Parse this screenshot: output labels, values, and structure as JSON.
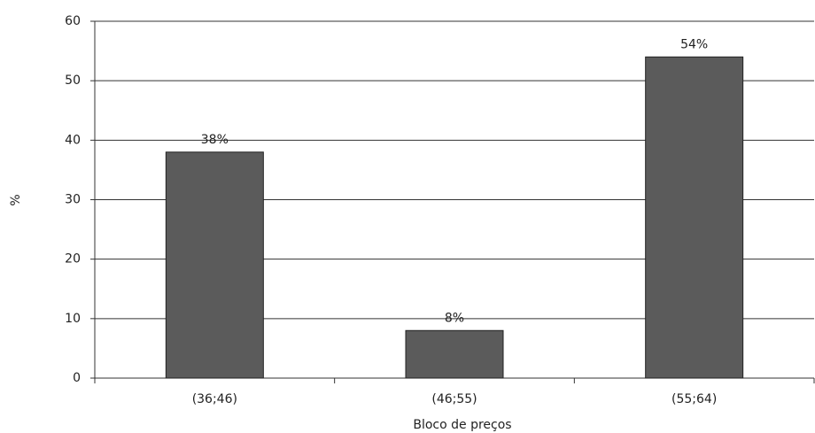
{
  "chart_data": {
    "type": "bar",
    "x_label": "Bloco de preços",
    "y_label": "%",
    "categories": [
      "(36;46)",
      "(46;55)",
      "(55;64)"
    ],
    "values": [
      38,
      8,
      54
    ],
    "value_labels": [
      "38%",
      "8%",
      "54%"
    ],
    "color": "#5b5b5b",
    "ylim": [
      0,
      60
    ],
    "yticks": [
      0,
      10,
      20,
      30,
      40,
      50,
      60
    ],
    "grid": true
  }
}
